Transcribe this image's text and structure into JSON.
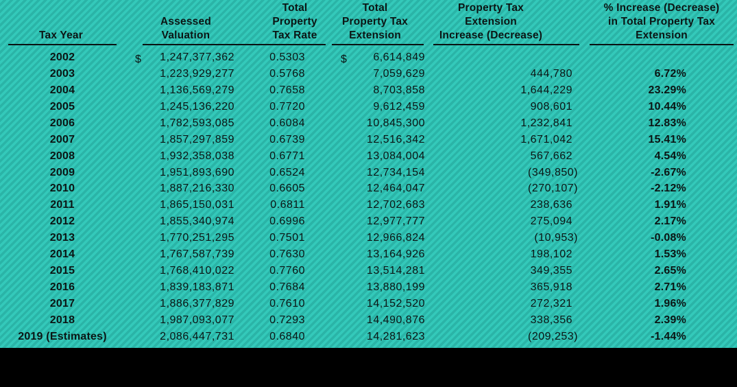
{
  "colors": {
    "panel_teal_light": "#34c9ba",
    "panel_teal_dark": "#2ab4a7",
    "text": "#0b1514",
    "bottom_band": "#000000"
  },
  "table": {
    "columns": [
      {
        "id": "tax-year",
        "lines": [
          "Tax Year"
        ]
      },
      {
        "id": "assessed-valuation",
        "lines": [
          "Assessed",
          "Valuation"
        ]
      },
      {
        "id": "total-property-tax-rate",
        "lines": [
          "Total",
          "Property",
          "Tax Rate"
        ]
      },
      {
        "id": "total-property-tax-extension",
        "lines": [
          "Total",
          "Property Tax",
          "Extension"
        ]
      },
      {
        "id": "extension-increase-decrease",
        "lines": [
          "Property Tax",
          "Extension",
          "Increase (Decrease)"
        ]
      },
      {
        "id": "pct-increase-decrease",
        "lines": [
          "% Increase (Decrease)",
          "in Total Property Tax",
          "Extension"
        ]
      }
    ],
    "rows": [
      {
        "tax_year": "2002",
        "valuation_currency": "$",
        "assessed_valuation": "1,247,377,362",
        "tax_rate": "0.5303",
        "extension_currency": "$",
        "extension": "6,614,849",
        "increase_decrease": "",
        "pct_change": ""
      },
      {
        "tax_year": "2003",
        "valuation_currency": "",
        "assessed_valuation": "1,223,929,277",
        "tax_rate": "0.5768",
        "extension_currency": "",
        "extension": "7,059,629",
        "increase_decrease": "444,780",
        "pct_change": "6.72%"
      },
      {
        "tax_year": "2004",
        "valuation_currency": "",
        "assessed_valuation": "1,136,569,279",
        "tax_rate": "0.7658",
        "extension_currency": "",
        "extension": "8,703,858",
        "increase_decrease": "1,644,229",
        "pct_change": "23.29%"
      },
      {
        "tax_year": "2005",
        "valuation_currency": "",
        "assessed_valuation": "1,245,136,220",
        "tax_rate": "0.7720",
        "extension_currency": "",
        "extension": "9,612,459",
        "increase_decrease": "908,601",
        "pct_change": "10.44%"
      },
      {
        "tax_year": "2006",
        "valuation_currency": "",
        "assessed_valuation": "1,782,593,085",
        "tax_rate": "0.6084",
        "extension_currency": "",
        "extension": "10,845,300",
        "increase_decrease": "1,232,841",
        "pct_change": "12.83%"
      },
      {
        "tax_year": "2007",
        "valuation_currency": "",
        "assessed_valuation": "1,857,297,859",
        "tax_rate": "0.6739",
        "extension_currency": "",
        "extension": "12,516,342",
        "increase_decrease": "1,671,042",
        "pct_change": "15.41%"
      },
      {
        "tax_year": "2008",
        "valuation_currency": "",
        "assessed_valuation": "1,932,358,038",
        "tax_rate": "0.6771",
        "extension_currency": "",
        "extension": "13,084,004",
        "increase_decrease": "567,662",
        "pct_change": "4.54%"
      },
      {
        "tax_year": "2009",
        "valuation_currency": "",
        "assessed_valuation": "1,951,893,690",
        "tax_rate": "0.6524",
        "extension_currency": "",
        "extension": "12,734,154",
        "increase_decrease": "(349,850)",
        "pct_change": "-2.67%"
      },
      {
        "tax_year": "2010",
        "valuation_currency": "",
        "assessed_valuation": "1,887,216,330",
        "tax_rate": "0.6605",
        "extension_currency": "",
        "extension": "12,464,047",
        "increase_decrease": "(270,107)",
        "pct_change": "-2.12%"
      },
      {
        "tax_year": "2011",
        "valuation_currency": "",
        "assessed_valuation": "1,865,150,031",
        "tax_rate": "0.6811",
        "extension_currency": "",
        "extension": "12,702,683",
        "increase_decrease": "238,636",
        "pct_change": "1.91%"
      },
      {
        "tax_year": "2012",
        "valuation_currency": "",
        "assessed_valuation": "1,855,340,974",
        "tax_rate": "0.6996",
        "extension_currency": "",
        "extension": "12,977,777",
        "increase_decrease": "275,094",
        "pct_change": "2.17%"
      },
      {
        "tax_year": "2013",
        "valuation_currency": "",
        "assessed_valuation": "1,770,251,295",
        "tax_rate": "0.7501",
        "extension_currency": "",
        "extension": "12,966,824",
        "increase_decrease": "(10,953)",
        "pct_change": "-0.08%"
      },
      {
        "tax_year": "2014",
        "valuation_currency": "",
        "assessed_valuation": "1,767,587,739",
        "tax_rate": "0.7630",
        "extension_currency": "",
        "extension": "13,164,926",
        "increase_decrease": "198,102",
        "pct_change": "1.53%"
      },
      {
        "tax_year": "2015",
        "valuation_currency": "",
        "assessed_valuation": "1,768,410,022",
        "tax_rate": "0.7760",
        "extension_currency": "",
        "extension": "13,514,281",
        "increase_decrease": "349,355",
        "pct_change": "2.65%"
      },
      {
        "tax_year": "2016",
        "valuation_currency": "",
        "assessed_valuation": "1,839,183,871",
        "tax_rate": "0.7684",
        "extension_currency": "",
        "extension": "13,880,199",
        "increase_decrease": "365,918",
        "pct_change": "2.71%"
      },
      {
        "tax_year": "2017",
        "valuation_currency": "",
        "assessed_valuation": "1,886,377,829",
        "tax_rate": "0.7610",
        "extension_currency": "",
        "extension": "14,152,520",
        "increase_decrease": "272,321",
        "pct_change": "1.96%"
      },
      {
        "tax_year": "2018",
        "valuation_currency": "",
        "assessed_valuation": "1,987,093,077",
        "tax_rate": "0.7293",
        "extension_currency": "",
        "extension": "14,490,876",
        "increase_decrease": "338,356",
        "pct_change": "2.39%"
      },
      {
        "tax_year": "2019 (Estimates)",
        "valuation_currency": "",
        "assessed_valuation": "2,086,447,731",
        "tax_rate": "0.6840",
        "extension_currency": "",
        "extension": "14,281,623",
        "increase_decrease": "(209,253)",
        "pct_change": "-1.44%"
      }
    ]
  }
}
